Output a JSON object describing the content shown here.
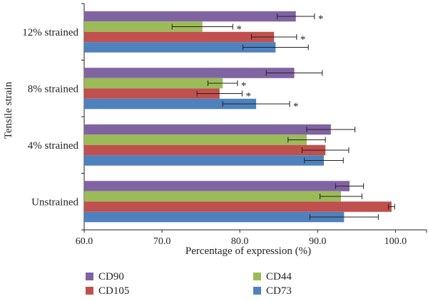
{
  "chart_data": {
    "type": "bar",
    "orientation": "horizontal",
    "xlabel": "Percentage of expression (%)",
    "ylabel": "Tensile strain",
    "xlim": [
      60.0,
      104.0
    ],
    "xticks": [
      "60.0",
      "70.0",
      "80.0",
      "90.0",
      "100.0"
    ],
    "tick_values": [
      60,
      70,
      80,
      90,
      100
    ],
    "categories": [
      "Unstrained",
      "4% strained",
      "8% strained",
      "12% strained"
    ],
    "legend_position": "bottom",
    "significance_mark": "*",
    "series": [
      {
        "name": "CD90",
        "color": "#8064a2",
        "values": [
          94.1,
          91.7,
          87.0,
          87.2
        ],
        "errors": [
          1.8,
          3.1,
          3.6,
          2.4
        ],
        "significant": [
          false,
          false,
          false,
          true
        ]
      },
      {
        "name": "CD44",
        "color": "#9bbb59",
        "values": [
          93.0,
          88.6,
          77.8,
          75.2
        ],
        "errors": [
          2.7,
          2.4,
          1.9,
          3.9
        ],
        "significant": [
          false,
          false,
          true,
          true
        ]
      },
      {
        "name": "CD105",
        "color": "#c0504d",
        "values": [
          99.5,
          91.0,
          77.4,
          84.4
        ],
        "errors": [
          0.4,
          3.0,
          2.9,
          2.9
        ],
        "significant": [
          false,
          false,
          true,
          true
        ]
      },
      {
        "name": "CD73",
        "color": "#4f81bd",
        "values": [
          93.4,
          90.8,
          82.1,
          84.6
        ],
        "errors": [
          4.4,
          2.5,
          4.3,
          4.2
        ],
        "significant": [
          false,
          false,
          true,
          false
        ]
      }
    ]
  }
}
